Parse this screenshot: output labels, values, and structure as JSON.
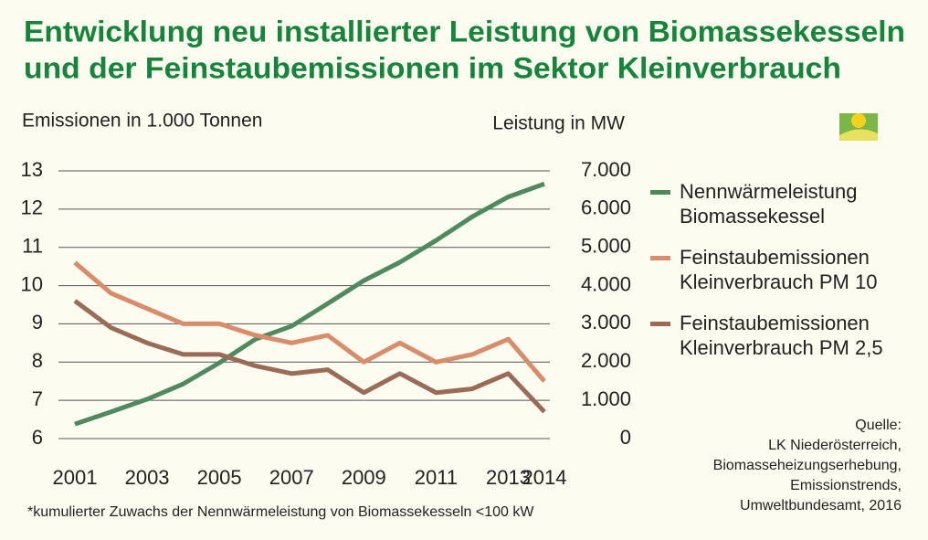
{
  "chart_data": {
    "type": "line",
    "title": [
      "Entwicklung neu installierter Leistung von Biomassekesseln",
      "und der Feinstaubemissionen im Sektor Kleinverbrauch"
    ],
    "ylabel": "Emissionen in 1.000 Tonnen",
    "y2label": "Leistung in MW",
    "x": [
      2001,
      2002,
      2003,
      2004,
      2005,
      2006,
      2007,
      2008,
      2009,
      2010,
      2011,
      2012,
      2013,
      2014
    ],
    "xlim": [
      2001,
      2014
    ],
    "xticks": [
      2001,
      2003,
      2005,
      2007,
      2009,
      2011,
      2013,
      2014
    ],
    "ylim": [
      6,
      13
    ],
    "yticks": [
      6,
      7,
      8,
      9,
      10,
      11,
      12,
      13
    ],
    "y2lim": [
      0,
      7000
    ],
    "y2ticks": [
      0,
      {
        "value": 1000,
        "label": "1.000"
      },
      {
        "value": 2000,
        "label": "2.000"
      },
      {
        "value": 3000,
        "label": "3.000"
      },
      {
        "value": 4000,
        "label": "4.000"
      },
      {
        "value": 5000,
        "label": "5.000"
      },
      {
        "value": 6000,
        "label": "6.000"
      },
      {
        "value": 7000,
        "label": "7.000"
      }
    ],
    "grid": true,
    "series": [
      {
        "name": "Nennwärmeleistung Biomassekessel",
        "color": "#4f8a5f",
        "axis": "y2",
        "values": [
          380,
          700,
          1030,
          1430,
          1980,
          2600,
          2940,
          3530,
          4130,
          4610,
          5180,
          5800,
          6320,
          6660
        ]
      },
      {
        "name": "Feinstaubemissionen Kleinverbrauch PM 10",
        "color": "#d98c69",
        "values": [
          10.6,
          9.8,
          9.4,
          9.0,
          9.0,
          8.7,
          8.5,
          8.7,
          8.0,
          8.5,
          8.0,
          8.2,
          8.6,
          7.5
        ]
      },
      {
        "name": "Feinstaubemissionen Kleinverbrauch PM 2,5",
        "color": "#9c6b58",
        "values": [
          9.6,
          8.9,
          8.5,
          8.2,
          8.2,
          7.9,
          7.7,
          7.8,
          7.2,
          7.7,
          7.2,
          7.3,
          7.7,
          6.7
        ]
      }
    ],
    "footnote": "*kumulierter Zuwachs der Nennwärmeleistung von Biomassekesseln <100 kW",
    "source": [
      "Quelle:",
      "LK Niederösterreich,",
      "Biomasseheizungserhebung,",
      "Emissionstrends,",
      "Umweltbundesamt, 2016"
    ]
  }
}
